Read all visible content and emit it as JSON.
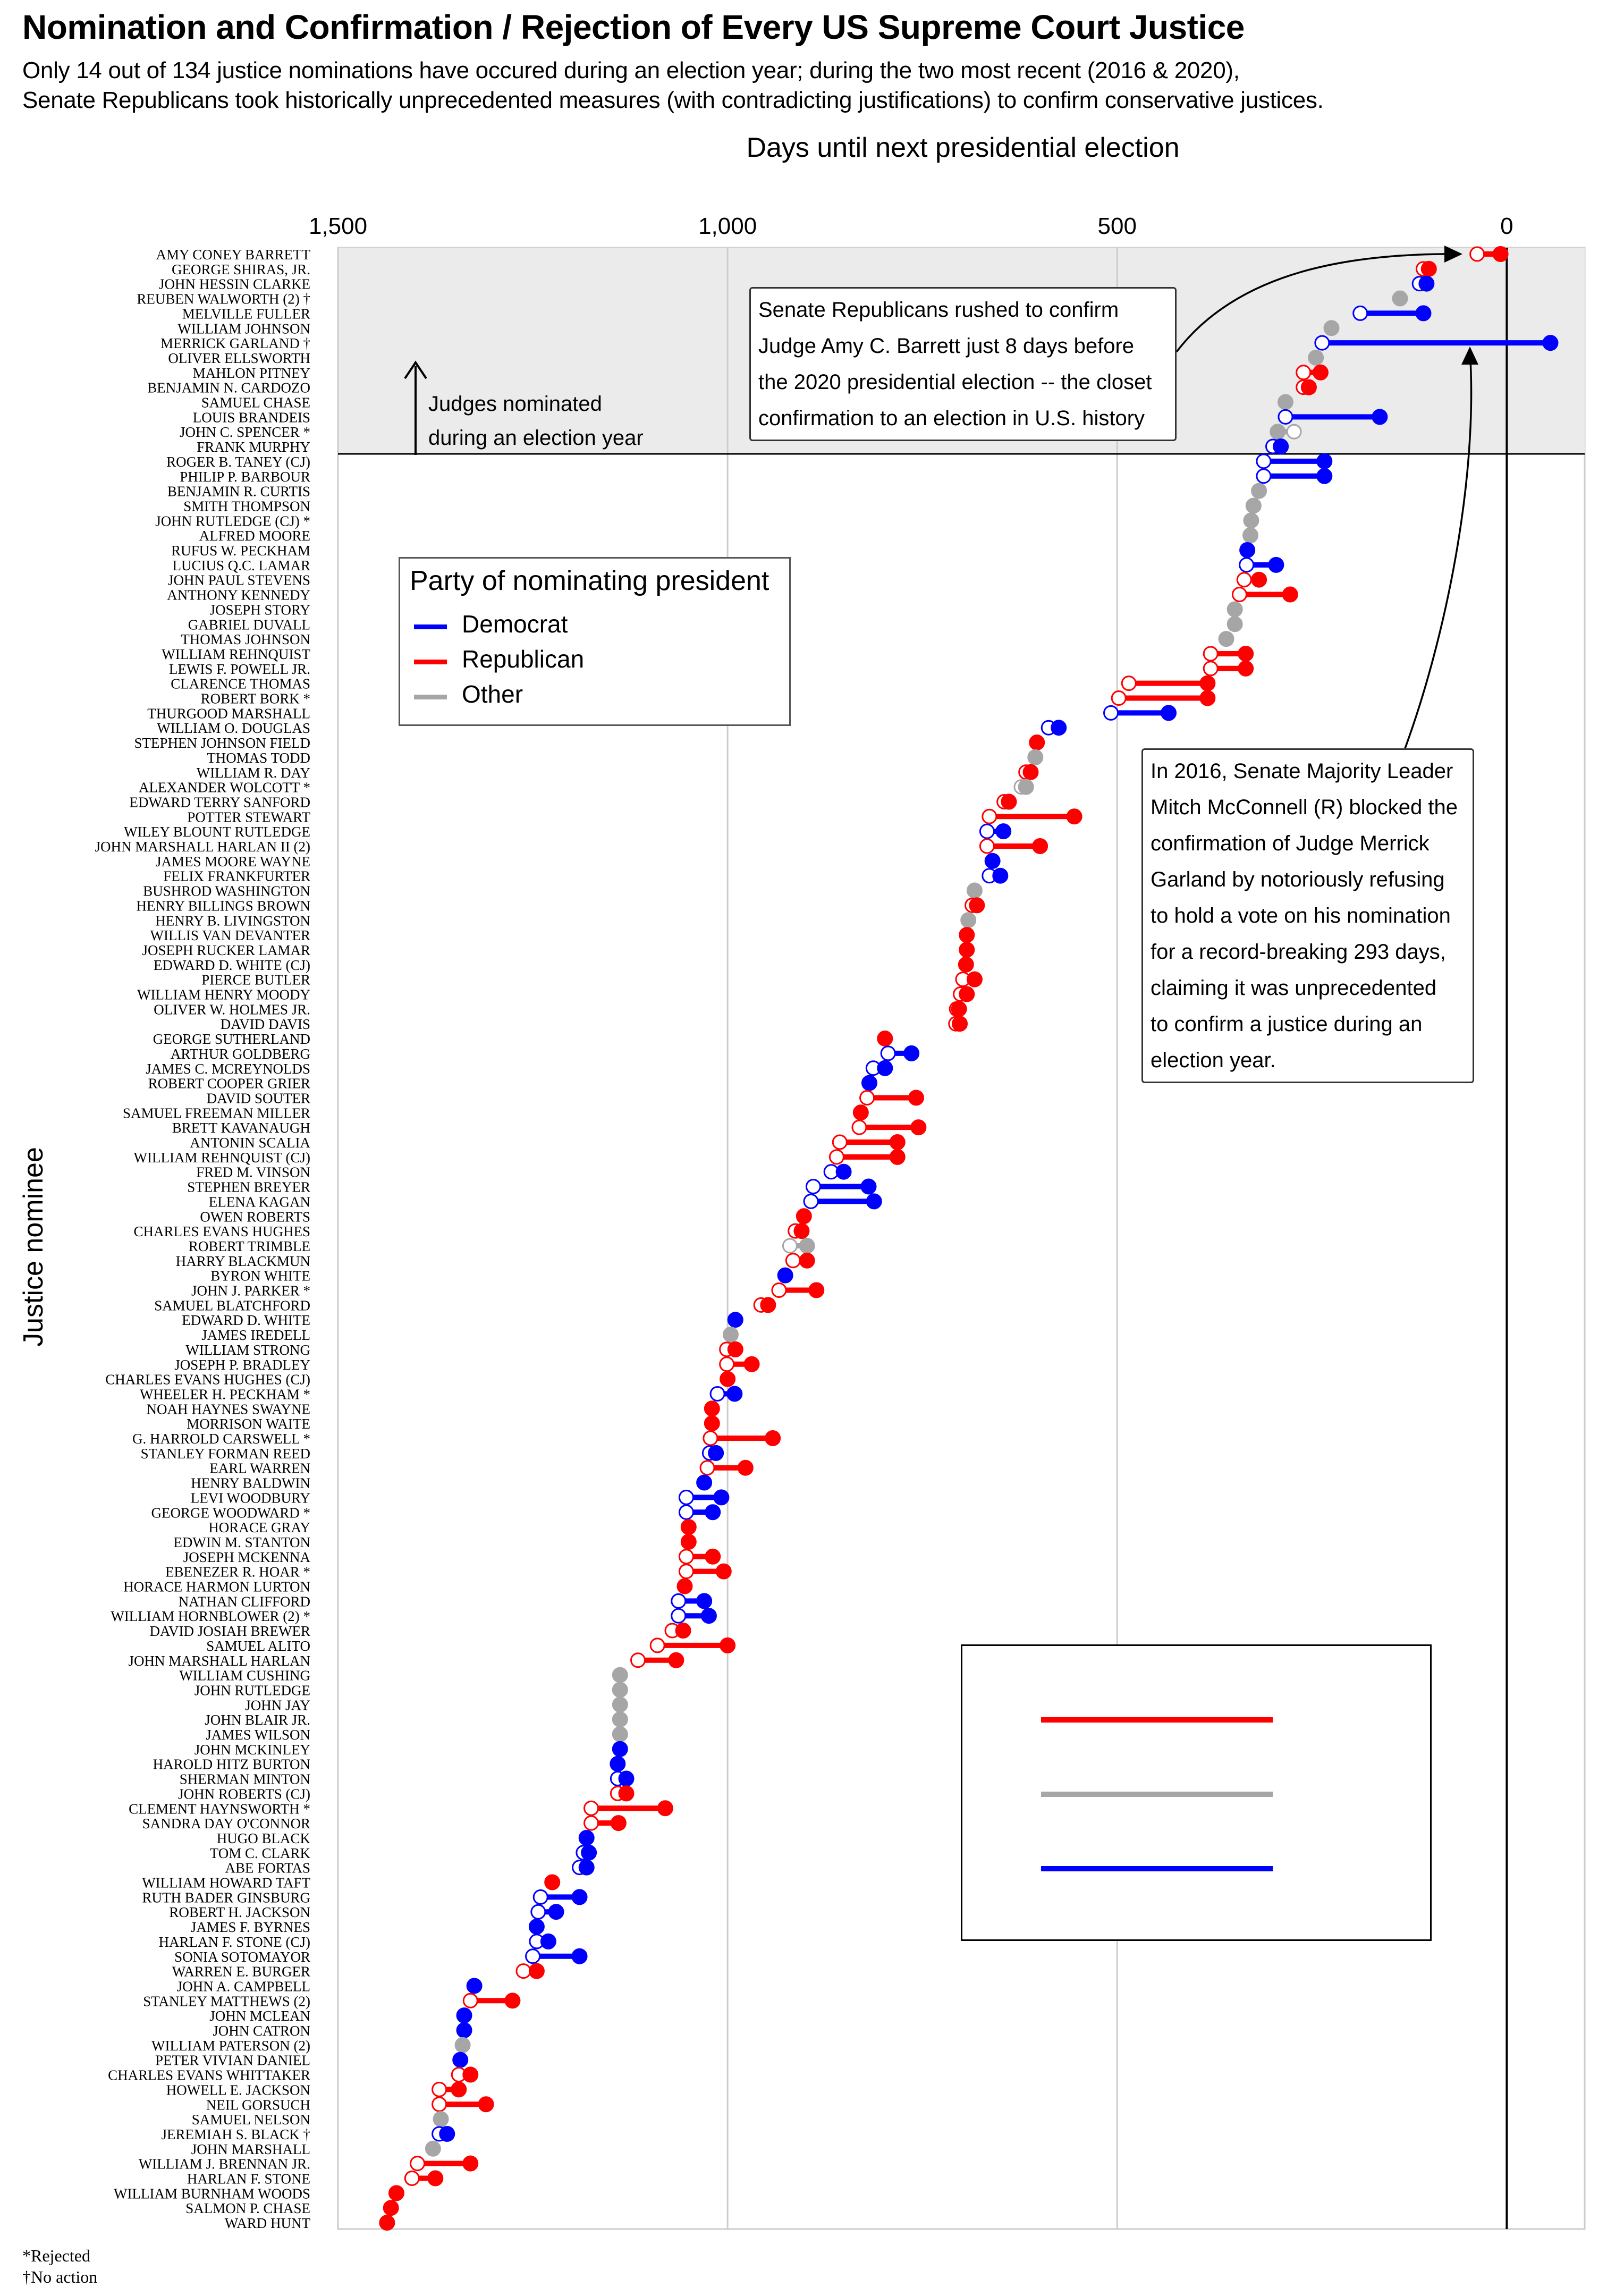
{
  "title": "Nomination and Confirmation / Rejection of Every US Supreme Court Justice",
  "subtitle_line1": "Only 14 out of 134 justice nominations have occured during an election year; during the two most recent (2016 & 2020),",
  "subtitle_line2": "Senate Republicans took historically unprecedented measures (with contradicting justifications) to confirm conservative justices.",
  "footnote_rejected": "*Rejected",
  "footnote_no_action": "†No action",
  "election_year_label_line1": "Judges nominated",
  "election_year_label_line2": "during an election year",
  "annotation_barrett": [
    "Senate Republicans rushed to confirm",
    "Judge Amy C. Barrett just 8 days before",
    "the 2020 presidential election -- the closet",
    "confirmation to an election in U.S. history"
  ],
  "annotation_garland": [
    "In 2016, Senate Majority Leader",
    "Mitch McConnell (R) blocked the",
    "confirmation of Judge Merrick",
    "Garland by notoriously refusing",
    "to hold a vote on his nomination",
    "for a record-breaking 293 days,",
    "claiming it was unprecedented",
    "to confirm a justice during an",
    "election year."
  ],
  "legend": {
    "title": "Party of nominating president",
    "items": [
      {
        "label": "Democrat",
        "color": "#0000ff"
      },
      {
        "label": "Republican",
        "color": "#ff0000"
      },
      {
        "label": "Other",
        "color": "#a6a6a6"
      }
    ]
  },
  "colors": {
    "D": "#0000ff",
    "R": "#ff0000",
    "O": "#a6a6a6",
    "band": "#ebebeb",
    "grid": "#cccccc"
  },
  "chart_data": {
    "type": "dumbbell",
    "xlabel": "Days until next presidential election",
    "ylabel": "Justice nominee",
    "xlim": [
      1500,
      -100
    ],
    "x_reversed": true,
    "x_ticks": [
      1500,
      1000,
      500,
      0
    ],
    "x_tick_labels": [
      "1,500",
      "1,000",
      "500",
      "0"
    ],
    "grid": true,
    "election_year_threshold_rows": 14,
    "fields": [
      "name",
      "party",
      "nomination_days",
      "decision_days"
    ],
    "rows": [
      [
        "AMY CONEY BARRETT",
        "R",
        38,
        8
      ],
      [
        "GEORGE SHIRAS, JR.",
        "R",
        107,
        100
      ],
      [
        "JOHN HESSIN CLARKE",
        "D",
        112,
        103
      ],
      [
        "REUBEN WALWORTH (2) †",
        "O",
        137,
        137
      ],
      [
        "MELVILLE FULLER",
        "D",
        188,
        107
      ],
      [
        "WILLIAM JOHNSON",
        "O",
        225,
        225
      ],
      [
        "MERRICK GARLAND †",
        "D",
        237,
        -56
      ],
      [
        "OLIVER ELLSWORTH",
        "O",
        245,
        245
      ],
      [
        "MAHLON PITNEY",
        "R",
        261,
        239
      ],
      [
        "BENJAMIN N. CARDOZO",
        "R",
        261,
        254
      ],
      [
        "SAMUEL CHASE",
        "O",
        284,
        284
      ],
      [
        "LOUIS BRANDEIS",
        "D",
        284,
        163
      ],
      [
        "JOHN C. SPENCER *",
        "O",
        273,
        294
      ],
      [
        "FRANK MURPHY",
        "D",
        300,
        290
      ],
      [
        "ROGER B. TANEY (CJ)",
        "D",
        312,
        234
      ],
      [
        "PHILIP P. BARBOUR",
        "D",
        312,
        234
      ],
      [
        "BENJAMIN R. CURTIS",
        "O",
        318,
        318
      ],
      [
        "SMITH THOMPSON",
        "O",
        325,
        325
      ],
      [
        "JOHN RUTLEDGE (CJ) *",
        "O",
        328,
        328
      ],
      [
        "ALFRED MOORE",
        "O",
        329,
        329
      ],
      [
        "RUFUS W. PECKHAM",
        "D",
        333,
        333
      ],
      [
        "LUCIUS Q.C. LAMAR",
        "D",
        334,
        296
      ],
      [
        "JOHN PAUL STEVENS",
        "R",
        337,
        318
      ],
      [
        "ANTHONY KENNEDY",
        "R",
        343,
        278
      ],
      [
        "JOSEPH STORY",
        "O",
        349,
        349
      ],
      [
        "GABRIEL DUVALL",
        "O",
        349,
        349
      ],
      [
        "THOMAS JOHNSON",
        "O",
        360,
        360
      ],
      [
        "WILLIAM REHNQUIST",
        "R",
        380,
        335
      ],
      [
        "LEWIS F. POWELL JR.",
        "R",
        380,
        335
      ],
      [
        "CLARENCE THOMAS",
        "R",
        485,
        384
      ],
      [
        "ROBERT BORK *",
        "R",
        498,
        384
      ],
      [
        "THURGOOD MARSHALL",
        "D",
        508,
        434
      ],
      [
        "WILLIAM O. DOUGLAS",
        "D",
        588,
        575
      ],
      [
        "STEPHEN JOHNSON FIELD",
        "R",
        603,
        603
      ],
      [
        "THOMAS TODD",
        "O",
        605,
        605
      ],
      [
        "WILLIAM R. DAY",
        "R",
        617,
        611
      ],
      [
        "ALEXANDER WOLCOTT *",
        "O",
        623,
        617
      ],
      [
        "EDWARD TERRY SANFORD",
        "R",
        645,
        639
      ],
      [
        "POTTER STEWART",
        "R",
        664,
        555
      ],
      [
        "WILEY BLOUNT RUTLEDGE",
        "D",
        667,
        646
      ],
      [
        "JOHN MARSHALL HARLAN II (2)",
        "R",
        667,
        599
      ],
      [
        "JAMES MOORE WAYNE",
        "D",
        660,
        660
      ],
      [
        "FELIX FRANKFURTER",
        "D",
        664,
        650
      ],
      [
        "BUSHROD WASHINGTON",
        "O",
        683,
        683
      ],
      [
        "HENRY BILLINGS BROWN",
        "R",
        686,
        680
      ],
      [
        "HENRY B. LIVINGSTON",
        "O",
        691,
        691
      ],
      [
        "WILLIS VAN DEVANTER",
        "R",
        693,
        693
      ],
      [
        "JOSEPH RUCKER LAMAR",
        "R",
        693,
        693
      ],
      [
        "EDWARD D. WHITE (CJ)",
        "R",
        694,
        694
      ],
      [
        "PIERCE BUTLER",
        "R",
        698,
        683
      ],
      [
        "WILLIAM HENRY MOODY",
        "R",
        701,
        693
      ],
      [
        "OLIVER W. HOLMES JR.",
        "R",
        706,
        703
      ],
      [
        "DAVID DAVIS",
        "R",
        707,
        702
      ],
      [
        "GEORGE SUTHERLAND",
        "R",
        798,
        798
      ],
      [
        "ARTHUR GOLDBERG",
        "D",
        794,
        764
      ],
      [
        "JAMES C. MCREYNOLDS",
        "D",
        813,
        798
      ],
      [
        "ROBERT COOPER GRIER",
        "D",
        818,
        818
      ],
      [
        "DAVID SOUTER",
        "R",
        821,
        758
      ],
      [
        "SAMUEL FREEMAN MILLER",
        "R",
        829,
        829
      ],
      [
        "BRETT KAVANAUGH",
        "R",
        831,
        755
      ],
      [
        "ANTONIN SCALIA",
        "R",
        856,
        782
      ],
      [
        "WILLIAM REHNQUIST (CJ)",
        "R",
        860,
        782
      ],
      [
        "FRED M. VINSON",
        "D",
        867,
        851
      ],
      [
        "STEPHEN BREYER",
        "D",
        890,
        819
      ],
      [
        "ELENA KAGAN",
        "D",
        893,
        812
      ],
      [
        "OWEN ROBERTS",
        "R",
        902,
        902
      ],
      [
        "CHARLES EVANS HUGHES",
        "R",
        913,
        905
      ],
      [
        "ROBERT TRIMBLE",
        "O",
        920,
        898
      ],
      [
        "HARRY BLACKMUN",
        "R",
        916,
        898
      ],
      [
        "BYRON WHITE",
        "D",
        926,
        926
      ],
      [
        "JOHN J. PARKER *",
        "R",
        934,
        886
      ],
      [
        "SAMUEL BLATCHFORD",
        "R",
        957,
        948
      ],
      [
        "EDWARD D. WHITE",
        "D",
        990,
        990
      ],
      [
        "JAMES IREDELL",
        "O",
        996,
        996
      ],
      [
        "WILLIAM STRONG",
        "R",
        1001,
        990
      ],
      [
        "JOSEPH P. BRADLEY",
        "R",
        1001,
        969
      ],
      [
        "CHARLES EVANS HUGHES (CJ)",
        "R",
        1000,
        1000
      ],
      [
        "WHEELER H. PECKHAM *",
        "D",
        1013,
        991
      ],
      [
        "NOAH HAYNES SWAYNE",
        "R",
        1020,
        1020
      ],
      [
        "MORRISON WAITE",
        "R",
        1020,
        1020
      ],
      [
        "G. HARROLD CARSWELL *",
        "R",
        1022,
        942
      ],
      [
        "STANLEY FORMAN REED",
        "D",
        1023,
        1015
      ],
      [
        "EARL WARREN",
        "R",
        1026,
        977
      ],
      [
        "HENRY BALDWIN",
        "D",
        1030,
        1030
      ],
      [
        "LEVI WOODBURY",
        "D",
        1053,
        1008
      ],
      [
        "GEORGE WOODWARD *",
        "D",
        1053,
        1019
      ],
      [
        "HORACE GRAY",
        "R",
        1050,
        1050
      ],
      [
        "EDWIN M. STANTON",
        "R",
        1050,
        1050
      ],
      [
        "JOSEPH MCKENNA",
        "R",
        1053,
        1019
      ],
      [
        "EBENEZER R. HOAR *",
        "R",
        1053,
        1005
      ],
      [
        "HORACE HARMON LURTON",
        "R",
        1055,
        1055
      ],
      [
        "NATHAN CLIFFORD",
        "D",
        1063,
        1030
      ],
      [
        "WILLIAM HORNBLOWER (2) *",
        "D",
        1063,
        1024
      ],
      [
        "DAVID JOSIAH BREWER",
        "R",
        1071,
        1057
      ],
      [
        "SAMUEL ALITO",
        "R",
        1090,
        1000
      ],
      [
        "JOHN MARSHALL HARLAN",
        "R",
        1115,
        1066
      ],
      [
        "WILLIAM CUSHING",
        "O",
        1138,
        1138
      ],
      [
        "JOHN RUTLEDGE",
        "O",
        1138,
        1138
      ],
      [
        "JOHN JAY",
        "O",
        1138,
        1138
      ],
      [
        "JOHN BLAIR JR.",
        "O",
        1138,
        1138
      ],
      [
        "JAMES WILSON",
        "O",
        1138,
        1138
      ],
      [
        "JOHN MCKINLEY",
        "D",
        1138,
        1138
      ],
      [
        "HAROLD HITZ BURTON",
        "D",
        1141,
        1141
      ],
      [
        "SHERMAN MINTON",
        "D",
        1141,
        1130
      ],
      [
        "JOHN ROBERTS (CJ)",
        "R",
        1141,
        1130
      ],
      [
        "CLEMENT HAYNSWORTH *",
        "R",
        1175,
        1080
      ],
      [
        "SANDRA DAY O'CONNOR",
        "R",
        1175,
        1140
      ],
      [
        "HUGO BLACK",
        "D",
        1181,
        1181
      ],
      [
        "TOM C. CLARK",
        "D",
        1185,
        1178
      ],
      [
        "ABE FORTAS",
        "D",
        1190,
        1181
      ],
      [
        "WILLIAM HOWARD TAFT",
        "R",
        1225,
        1225
      ],
      [
        "RUTH BADER GINSBURG",
        "D",
        1240,
        1190
      ],
      [
        "ROBERT H. JACKSON",
        "D",
        1243,
        1220
      ],
      [
        "JAMES F. BYRNES",
        "D",
        1245,
        1245
      ],
      [
        "HARLAN F. STONE (CJ)",
        "D",
        1245,
        1230
      ],
      [
        "SONIA SOTOMAYOR",
        "D",
        1250,
        1190
      ],
      [
        "WARREN E. BURGER",
        "R",
        1262,
        1245
      ],
      [
        "JOHN A. CAMPBELL",
        "D",
        1325,
        1325
      ],
      [
        "STANLEY MATTHEWS (2)",
        "R",
        1330,
        1276
      ],
      [
        "JOHN MCLEAN",
        "D",
        1338,
        1338
      ],
      [
        "JOHN CATRON",
        "D",
        1338,
        1338
      ],
      [
        "WILLIAM PATERSON (2)",
        "O",
        1340,
        1340
      ],
      [
        "PETER VIVIAN DANIEL",
        "D",
        1343,
        1343
      ],
      [
        "CHARLES EVANS WHITTAKER",
        "R",
        1345,
        1330
      ],
      [
        "HOWELL E. JACKSON",
        "R",
        1370,
        1345
      ],
      [
        "NEIL GORSUCH",
        "R",
        1370,
        1310
      ],
      [
        "SAMUEL NELSON",
        "O",
        1368,
        1368
      ],
      [
        "JEREMIAH S. BLACK †",
        "D",
        1370,
        1360
      ],
      [
        "JOHN MARSHALL",
        "O",
        1378,
        1378
      ],
      [
        "WILLIAM J. BRENNAN JR.",
        "R",
        1398,
        1330
      ],
      [
        "HARLAN F. STONE",
        "R",
        1405,
        1375
      ],
      [
        "WILLIAM BURNHAM WOODS",
        "R",
        1425,
        1425
      ],
      [
        "SALMON P. CHASE",
        "R",
        1432,
        1432
      ],
      [
        "WARD HUNT",
        "R",
        1437,
        1437
      ]
    ]
  }
}
